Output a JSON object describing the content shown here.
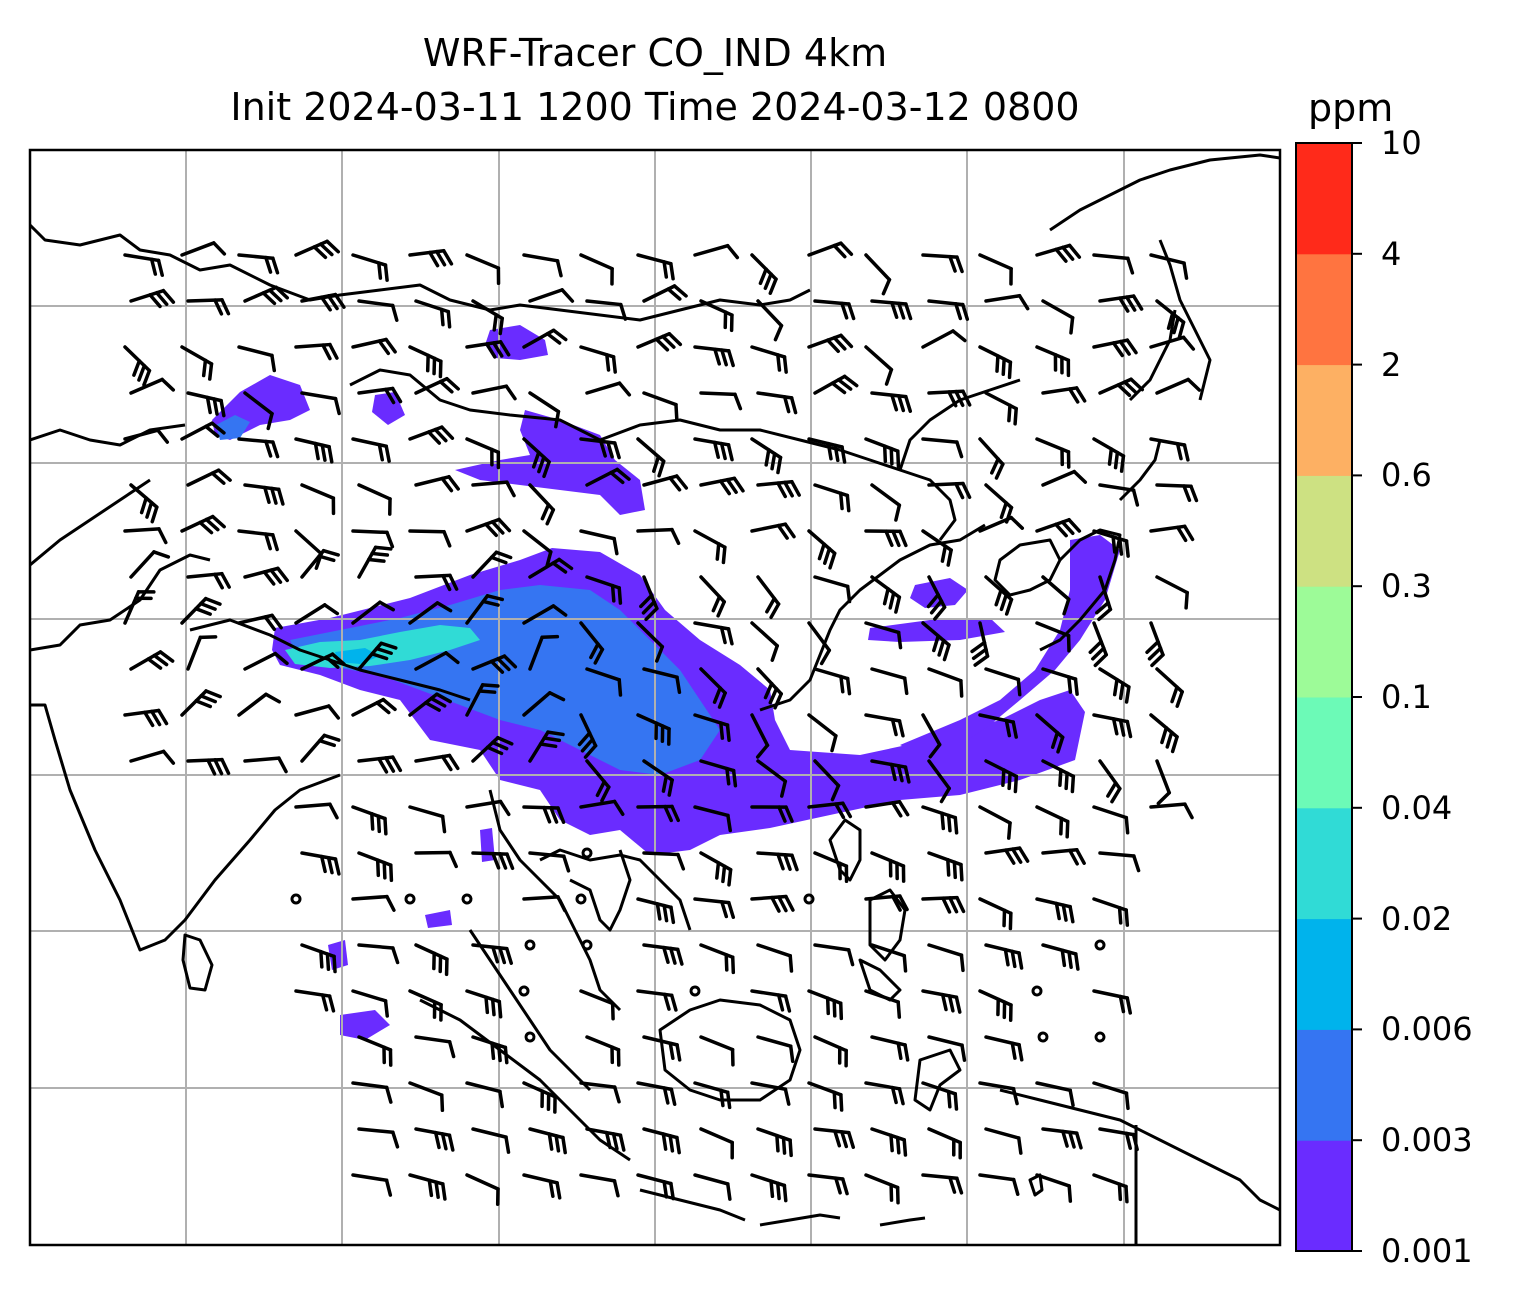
{
  "title": {
    "line1": "WRF-Tracer CO_IND 4km",
    "line2": "Init 2024-03-11 1200 Time 2024-03-12 0800"
  },
  "colorbar": {
    "unit": "ppm",
    "labels": [
      "0.001",
      "0.003",
      "0.006",
      "0.02",
      "0.04",
      "0.1",
      "0.3",
      "0.6",
      "2",
      "4",
      "10"
    ],
    "colors": [
      "#6a2cff",
      "#3575f2",
      "#00b3ec",
      "#30dbd6",
      "#6cfab7",
      "#9dfb98",
      "#cde182",
      "#fdb063",
      "#ff7440",
      "#ff2a1a"
    ]
  },
  "map": {
    "tracer_colors": {
      "low": "#6a2cff",
      "mid": "#3575f2",
      "high": "#30dbd6",
      "peak": "#00b3ec"
    },
    "gridline_color": "#b0b0b0",
    "coastline_color": "#000000"
  }
}
